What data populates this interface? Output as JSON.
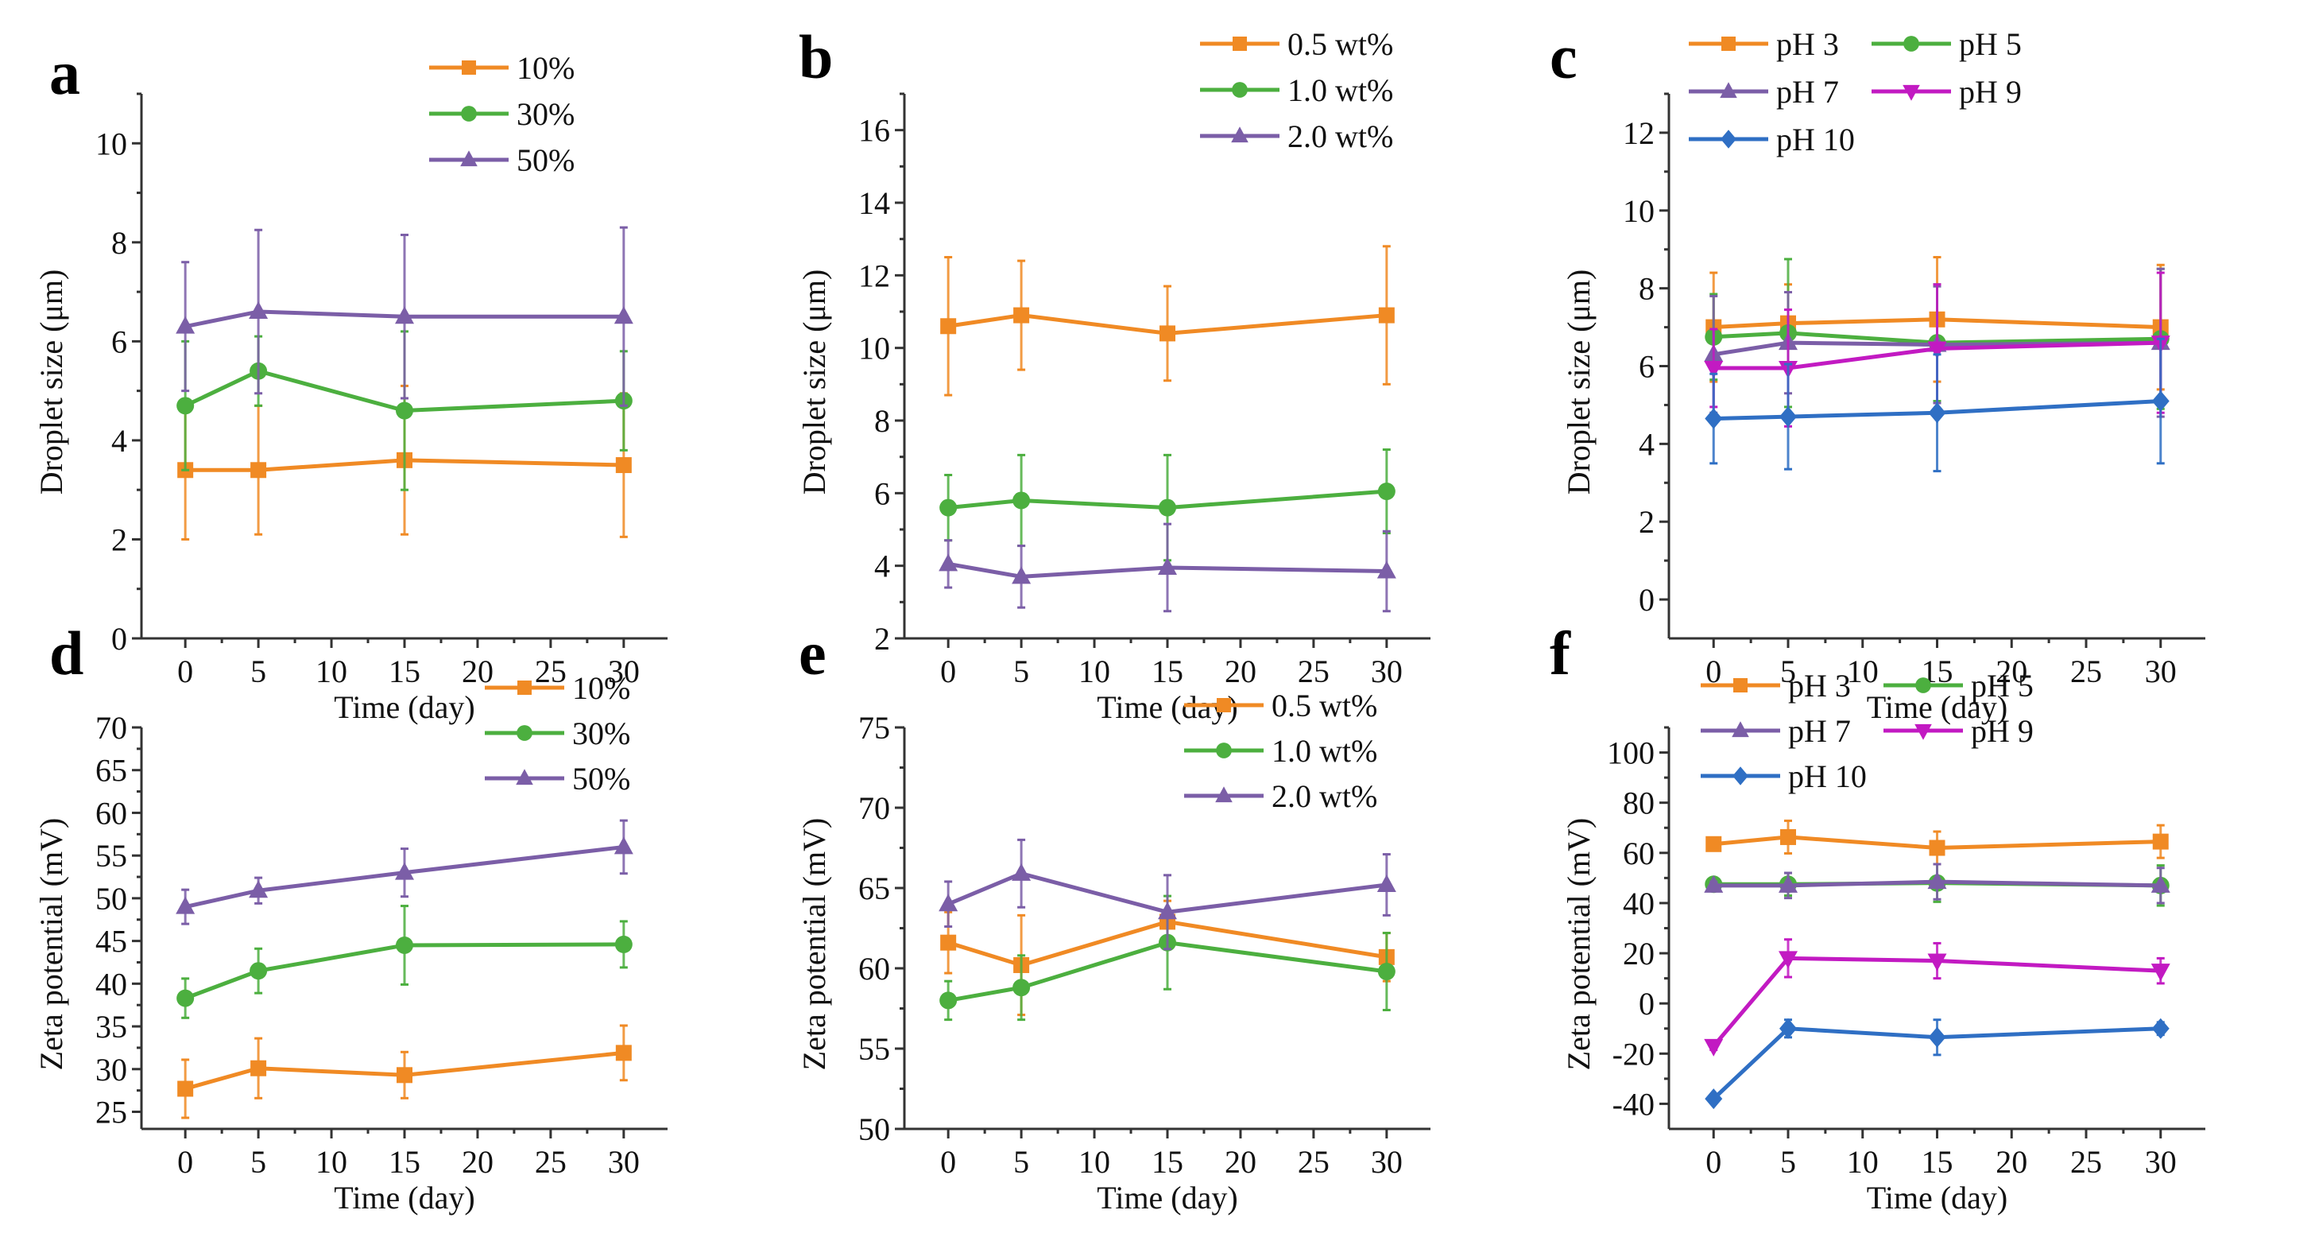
{
  "figure": {
    "panels": [
      "a",
      "b",
      "c",
      "d",
      "e",
      "f"
    ]
  },
  "chart_data": [
    {
      "panel": "a",
      "type": "line",
      "title": "",
      "xlabel": "Time (day)",
      "ylabel": "Droplet size (μm)",
      "x": [
        0,
        5,
        15,
        30
      ],
      "xlim": [
        -3,
        33
      ],
      "xticks": [
        0,
        5,
        10,
        15,
        20,
        25,
        30
      ],
      "ylim": [
        0,
        11
      ],
      "yticks": [
        0,
        2,
        4,
        6,
        8,
        10
      ],
      "grid": false,
      "legend": "top-right",
      "legend_columns": 1,
      "series": [
        {
          "name": "10%",
          "color": "#f08a24",
          "marker": "square",
          "values": [
            3.4,
            3.4,
            3.6,
            3.5
          ],
          "errors": [
            1.4,
            1.3,
            1.5,
            1.45
          ]
        },
        {
          "name": "30%",
          "color": "#4caf3f",
          "marker": "circle",
          "values": [
            4.7,
            5.4,
            4.6,
            4.8
          ],
          "errors": [
            1.3,
            0.7,
            1.6,
            1.0
          ]
        },
        {
          "name": "50%",
          "color": "#7b5ea7",
          "marker": "triangle-up",
          "values": [
            6.3,
            6.6,
            6.5,
            6.5
          ],
          "errors": [
            1.3,
            1.65,
            1.65,
            1.8
          ]
        }
      ]
    },
    {
      "panel": "b",
      "type": "line",
      "title": "",
      "xlabel": "Time (day)",
      "ylabel": "Droplet size (μm)",
      "x": [
        0,
        5,
        15,
        30
      ],
      "xlim": [
        -3,
        33
      ],
      "xticks": [
        0,
        5,
        10,
        15,
        20,
        25,
        30
      ],
      "ylim": [
        2,
        17
      ],
      "yticks": [
        2,
        4,
        6,
        8,
        10,
        12,
        14,
        16
      ],
      "grid": false,
      "legend": "top-right",
      "legend_columns": 1,
      "series": [
        {
          "name": "0.5 wt%",
          "color": "#f08a24",
          "marker": "square",
          "values": [
            10.6,
            10.9,
            10.4,
            10.9
          ],
          "errors": [
            1.9,
            1.5,
            1.3,
            1.9
          ]
        },
        {
          "name": "1.0 wt%",
          "color": "#4caf3f",
          "marker": "circle",
          "values": [
            5.6,
            5.8,
            5.6,
            6.05
          ],
          "errors": [
            0.9,
            1.25,
            1.45,
            1.15
          ]
        },
        {
          "name": "2.0 wt%",
          "color": "#7b5ea7",
          "marker": "triangle-up",
          "values": [
            4.05,
            3.7,
            3.95,
            3.85
          ],
          "errors": [
            0.65,
            0.85,
            1.2,
            1.1
          ]
        }
      ]
    },
    {
      "panel": "c",
      "type": "line",
      "title": "",
      "xlabel": "Time (day)",
      "ylabel": "Droplet size (μm)",
      "x": [
        0,
        5,
        15,
        30
      ],
      "xlim": [
        -3,
        33
      ],
      "xticks": [
        0,
        5,
        10,
        15,
        20,
        25,
        30
      ],
      "ylim": [
        -1,
        13
      ],
      "yticks": [
        0,
        2,
        4,
        6,
        8,
        10,
        12
      ],
      "grid": false,
      "legend": "top-right",
      "legend_columns": 2,
      "series": [
        {
          "name": "pH 3",
          "color": "#f08a24",
          "marker": "square",
          "values": [
            7.0,
            7.1,
            7.2,
            7.0
          ],
          "errors": [
            1.4,
            1.0,
            1.6,
            1.6
          ]
        },
        {
          "name": "pH 5",
          "color": "#4caf3f",
          "marker": "circle",
          "values": [
            6.75,
            6.85,
            6.6,
            6.7
          ],
          "errors": [
            1.1,
            1.9,
            1.5,
            1.8
          ]
        },
        {
          "name": "pH 7",
          "color": "#7b5ea7",
          "marker": "triangle-up",
          "values": [
            6.3,
            6.6,
            6.55,
            6.6
          ],
          "errors": [
            1.5,
            1.3,
            1.5,
            1.9
          ]
        },
        {
          "name": "pH 9",
          "color": "#c21ac2",
          "marker": "triangle-down",
          "values": [
            5.95,
            5.95,
            6.45,
            6.6
          ],
          "errors": [
            1.0,
            1.5,
            1.65,
            1.8
          ]
        },
        {
          "name": "pH 10",
          "color": "#2f6fc4",
          "marker": "diamond",
          "values": [
            4.65,
            4.7,
            4.8,
            5.1
          ],
          "errors": [
            1.15,
            1.35,
            1.5,
            1.6
          ]
        }
      ]
    },
    {
      "panel": "d",
      "type": "line",
      "title": "",
      "xlabel": "Time (day)",
      "ylabel": "Zeta potential (mV)",
      "x": [
        0,
        5,
        15,
        30
      ],
      "xlim": [
        -3,
        33
      ],
      "xticks": [
        0,
        5,
        10,
        15,
        20,
        25,
        30
      ],
      "ylim": [
        23,
        70
      ],
      "yticks": [
        25,
        30,
        35,
        40,
        45,
        50,
        55,
        60,
        65,
        70
      ],
      "grid": false,
      "legend": "top-right",
      "legend_columns": 1,
      "series": [
        {
          "name": "10%",
          "color": "#f08a24",
          "marker": "square",
          "values": [
            27.7,
            30.1,
            29.3,
            31.9
          ],
          "errors": [
            3.4,
            3.5,
            2.7,
            3.2
          ]
        },
        {
          "name": "30%",
          "color": "#4caf3f",
          "marker": "circle",
          "values": [
            38.3,
            41.5,
            44.5,
            44.6
          ],
          "errors": [
            2.3,
            2.6,
            4.6,
            2.7
          ]
        },
        {
          "name": "50%",
          "color": "#7b5ea7",
          "marker": "triangle-up",
          "values": [
            49.0,
            50.9,
            53.0,
            56.0
          ],
          "errors": [
            2.0,
            1.5,
            2.8,
            3.1
          ]
        }
      ]
    },
    {
      "panel": "e",
      "type": "line",
      "title": "",
      "xlabel": "Time (day)",
      "ylabel": "Zeta potential (mV)",
      "x": [
        0,
        5,
        15,
        30
      ],
      "xlim": [
        -3,
        33
      ],
      "xticks": [
        0,
        5,
        10,
        15,
        20,
        25,
        30
      ],
      "ylim": [
        50,
        75
      ],
      "yticks": [
        50,
        55,
        60,
        65,
        70,
        75
      ],
      "grid": false,
      "legend": "top-right",
      "legend_columns": 1,
      "series": [
        {
          "name": "0.5 wt%",
          "color": "#f08a24",
          "marker": "square",
          "values": [
            61.6,
            60.2,
            62.9,
            60.7
          ],
          "errors": [
            1.9,
            3.1,
            1.3,
            1.5
          ]
        },
        {
          "name": "1.0 wt%",
          "color": "#4caf3f",
          "marker": "circle",
          "values": [
            58.0,
            58.8,
            61.6,
            59.8
          ],
          "errors": [
            1.2,
            2.0,
            2.9,
            2.4
          ]
        },
        {
          "name": "2.0 wt%",
          "color": "#7b5ea7",
          "marker": "triangle-up",
          "values": [
            64.0,
            65.9,
            63.5,
            65.2
          ],
          "errors": [
            1.4,
            2.1,
            2.3,
            1.9
          ]
        }
      ]
    },
    {
      "panel": "f",
      "type": "line",
      "title": "",
      "xlabel": "Time (day)",
      "ylabel": "Zeta potential (mV)",
      "x": [
        0,
        5,
        15,
        30
      ],
      "xlim": [
        -3,
        33
      ],
      "xticks": [
        0,
        5,
        10,
        15,
        20,
        25,
        30
      ],
      "ylim": [
        -50,
        110
      ],
      "yticks": [
        -40,
        -20,
        0,
        20,
        40,
        60,
        80,
        100
      ],
      "grid": false,
      "legend": "top-right",
      "legend_columns": 2,
      "series": [
        {
          "name": "pH 3",
          "color": "#f08a24",
          "marker": "square",
          "values": [
            63.5,
            66.3,
            62.0,
            64.5
          ],
          "errors": [
            1.5,
            6.5,
            6.5,
            6.5
          ]
        },
        {
          "name": "pH 5",
          "color": "#4caf3f",
          "marker": "circle",
          "values": [
            47.5,
            47.5,
            48.0,
            47.0
          ],
          "errors": [
            1.5,
            4.5,
            7.5,
            8.0
          ]
        },
        {
          "name": "pH 7",
          "color": "#7b5ea7",
          "marker": "triangle-up",
          "values": [
            47.0,
            47.0,
            48.5,
            47.0
          ],
          "errors": [
            1.5,
            5.0,
            7.0,
            7.0
          ]
        },
        {
          "name": "pH 9",
          "color": "#c21ac2",
          "marker": "triangle-down",
          "values": [
            -17.0,
            18.0,
            17.0,
            13.0
          ],
          "errors": [
            1.5,
            7.5,
            7.0,
            5.0
          ]
        },
        {
          "name": "pH 10",
          "color": "#2f6fc4",
          "marker": "diamond",
          "values": [
            -38.0,
            -10.0,
            -13.5,
            -10.0
          ],
          "errors": [
            1.5,
            3.5,
            7.0,
            2.5
          ]
        }
      ]
    }
  ]
}
